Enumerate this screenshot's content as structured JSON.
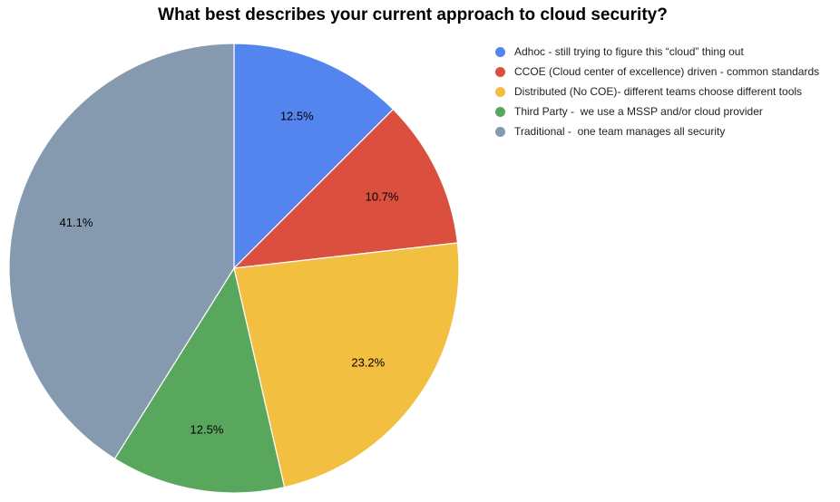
{
  "chart_data": {
    "type": "pie",
    "title": "What best describes your current approach to cloud security?",
    "legend_position": "right",
    "slices": [
      {
        "label": "Adhoc - still trying to figure this “cloud” thing out",
        "value": 12.5,
        "display": "12.5%",
        "color": "#5484ED"
      },
      {
        "label": "CCOE (Cloud center of excellence) driven - common standards",
        "value": 10.7,
        "display": "10.7%",
        "color": "#DA4F3E"
      },
      {
        "label": "Distributed (No COE)- different teams choose different tools",
        "value": 23.2,
        "display": "23.2%",
        "color": "#F3BF40"
      },
      {
        "label": "Third Party -  we use a MSSP and/or cloud provider",
        "value": 12.5,
        "display": "12.5%",
        "color": "#58A75C"
      },
      {
        "label": "Traditional -  one team manages all security",
        "value": 41.1,
        "display": "41.1%",
        "color": "#8599AF"
      }
    ]
  }
}
